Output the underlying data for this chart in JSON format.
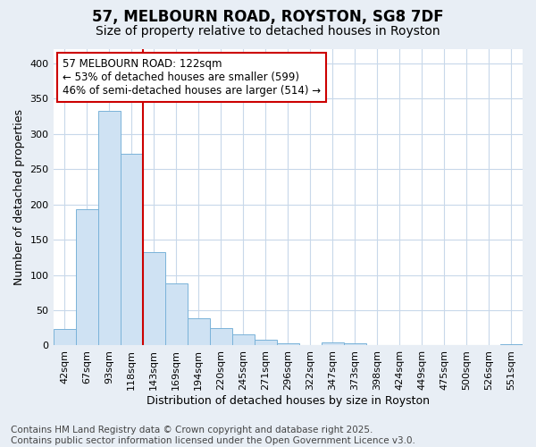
{
  "title": "57, MELBOURN ROAD, ROYSTON, SG8 7DF",
  "subtitle": "Size of property relative to detached houses in Royston",
  "xlabel": "Distribution of detached houses by size in Royston",
  "ylabel": "Number of detached properties",
  "categories": [
    "42sqm",
    "67sqm",
    "93sqm",
    "118sqm",
    "143sqm",
    "169sqm",
    "194sqm",
    "220sqm",
    "245sqm",
    "271sqm",
    "296sqm",
    "322sqm",
    "347sqm",
    "373sqm",
    "398sqm",
    "424sqm",
    "449sqm",
    "475sqm",
    "500sqm",
    "526sqm",
    "551sqm"
  ],
  "values": [
    23,
    193,
    333,
    272,
    132,
    88,
    38,
    25,
    16,
    8,
    3,
    0,
    4,
    3,
    0,
    0,
    0,
    0,
    0,
    0,
    2
  ],
  "bar_color": "#cfe2f3",
  "bar_edge_color": "#7ab3d9",
  "vline_x_pos": 3.5,
  "vline_color": "#cc0000",
  "annotation_text": "57 MELBOURN ROAD: 122sqm\n← 53% of detached houses are smaller (599)\n46% of semi-detached houses are larger (514) →",
  "annotation_box_facecolor": "#ffffff",
  "annotation_box_edgecolor": "#cc0000",
  "ylim": [
    0,
    420
  ],
  "yticks": [
    0,
    50,
    100,
    150,
    200,
    250,
    300,
    350,
    400
  ],
  "plot_bg_color": "#ffffff",
  "fig_bg_color": "#e8eef5",
  "grid_color": "#c8d8ea",
  "footer": "Contains HM Land Registry data © Crown copyright and database right 2025.\nContains public sector information licensed under the Open Government Licence v3.0.",
  "title_fontsize": 12,
  "subtitle_fontsize": 10,
  "axis_label_fontsize": 9,
  "tick_fontsize": 8,
  "annotation_fontsize": 8.5,
  "footer_fontsize": 7.5
}
